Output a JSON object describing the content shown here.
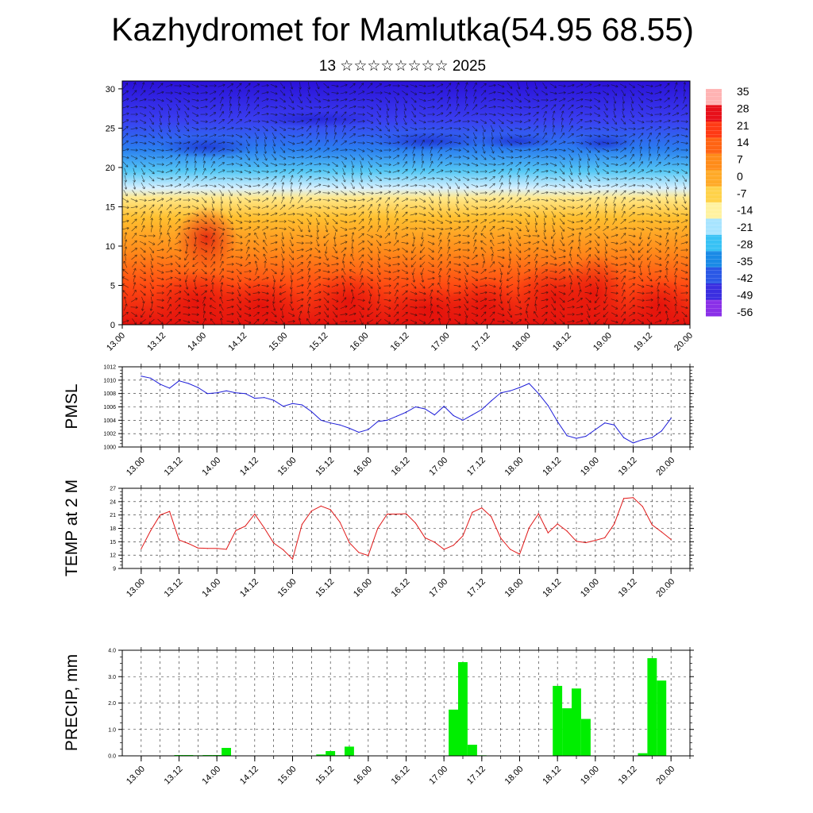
{
  "header": {
    "title": "Kazhydromet for Mamlutka(54.95 68.55)",
    "subtitle": "13 ☆☆☆☆☆☆☆☆ 2025"
  },
  "chart_data": [
    {
      "type": "heatmap",
      "title": "",
      "xlabel": "",
      "ylabel": "",
      "xticks": [
        "13.00",
        "13.12",
        "14.00",
        "14.12",
        "15.00",
        "15.12",
        "16.00",
        "16.12",
        "17.00",
        "17.12",
        "18.00",
        "18.12",
        "19.00",
        "19.12",
        "20.00"
      ],
      "ylim": [
        0,
        31
      ],
      "yticks": [
        0,
        5,
        10,
        15,
        20,
        25,
        30
      ],
      "colorbar": {
        "labels": [
          "35",
          "28",
          "21",
          "14",
          "7",
          "0",
          "-7",
          "-14",
          "-21",
          "-28",
          "-35",
          "-42",
          "-49",
          "-56"
        ],
        "colors": [
          "#ffb3b3",
          "#e8101a",
          "#ff3a14",
          "#ff6414",
          "#ff8c1a",
          "#ffaa28",
          "#ffd24a",
          "#fff2a0",
          "#a8e4ff",
          "#38c2f5",
          "#1a8ae6",
          "#2a58e6",
          "#3a2ee0",
          "#8a30e8"
        ]
      },
      "fields": "temperature (color), wind (arrows)"
    },
    {
      "type": "line",
      "ylabel": "PMSL",
      "ylim": [
        1000,
        1012
      ],
      "yticks": [
        1000,
        1002,
        1004,
        1006,
        1008,
        1010,
        1012
      ],
      "xticks": [
        "13.00",
        "13.12",
        "14.00",
        "14.12",
        "15.00",
        "15.12",
        "16.00",
        "16.12",
        "17.00",
        "17.12",
        "18.00",
        "18.12",
        "19.00",
        "19.12",
        "20.00"
      ],
      "color": "#1c1cd8",
      "x": [
        0,
        3,
        6,
        9,
        12,
        15,
        18,
        21,
        24,
        27,
        30,
        33,
        36,
        39,
        42,
        45,
        48,
        51,
        54,
        57,
        60,
        63,
        66,
        69,
        72,
        75,
        78,
        81,
        84,
        87,
        90,
        93,
        96,
        99,
        102,
        105,
        108,
        111,
        114,
        117,
        120,
        123,
        126,
        129,
        132,
        135,
        138,
        141,
        144,
        147,
        150,
        153,
        156,
        159,
        162,
        165,
        168
      ],
      "values": [
        1010.6,
        1010.3,
        1009.4,
        1008.8,
        1009.9,
        1009.5,
        1008.9,
        1008.0,
        1008.1,
        1008.4,
        1008.1,
        1008.0,
        1007.3,
        1007.4,
        1007.0,
        1006.1,
        1006.5,
        1006.3,
        1005.3,
        1004.0,
        1003.6,
        1003.3,
        1002.8,
        1002.2,
        1002.6,
        1003.8,
        1004.0,
        1004.6,
        1005.2,
        1006.0,
        1005.7,
        1004.8,
        1006.1,
        1004.7,
        1004.0,
        1004.8,
        1005.6,
        1006.9,
        1008.1,
        1008.4,
        1008.9,
        1009.5,
        1008.0,
        1006.2,
        1003.8,
        1001.7,
        1001.3,
        1001.6,
        1002.6,
        1003.6,
        1003.3,
        1001.4,
        1000.6,
        1001.1,
        1001.4,
        1002.4,
        1004.3
      ]
    },
    {
      "type": "line",
      "ylabel": "TEMP at 2 M",
      "ylim": [
        9,
        27
      ],
      "yticks": [
        9,
        12,
        15,
        18,
        21,
        24,
        27
      ],
      "xticks": [
        "13.00",
        "13.12",
        "14.00",
        "14.12",
        "15.00",
        "15.12",
        "16.00",
        "16.12",
        "17.00",
        "17.12",
        "18.00",
        "18.12",
        "19.00",
        "19.12",
        "20.00"
      ],
      "color": "#e01818",
      "x": [
        0,
        3,
        6,
        9,
        12,
        15,
        18,
        21,
        24,
        27,
        30,
        33,
        36,
        39,
        42,
        45,
        48,
        51,
        54,
        57,
        60,
        63,
        66,
        69,
        72,
        75,
        78,
        81,
        84,
        87,
        90,
        93,
        96,
        99,
        102,
        105,
        108,
        111,
        114,
        117,
        120,
        123,
        126,
        129,
        132,
        135,
        138,
        141,
        144,
        147,
        150,
        153,
        156,
        159,
        162,
        165,
        168
      ],
      "values": [
        13.4,
        17.5,
        21.0,
        21.8,
        15.4,
        14.6,
        13.6,
        13.5,
        13.5,
        13.3,
        17.5,
        18.5,
        21.2,
        18.1,
        14.7,
        13.2,
        11.1,
        18.9,
        21.9,
        23.0,
        22.2,
        19.4,
        14.8,
        12.6,
        11.9,
        18.0,
        21.2,
        21.2,
        21.3,
        19.2,
        15.9,
        14.9,
        13.3,
        14.2,
        16.3,
        21.6,
        22.6,
        20.6,
        15.8,
        13.3,
        12.2,
        18.1,
        21.3,
        17.0,
        19.0,
        17.4,
        15.1,
        14.8,
        15.3,
        15.9,
        19.0,
        24.7,
        24.9,
        22.9,
        18.8,
        17.2,
        15.5
      ]
    },
    {
      "type": "bar",
      "ylabel": "PRECIP, mm",
      "ylim": [
        0,
        4
      ],
      "yticks": [
        "0.0",
        "1.0",
        "2.0",
        "3.0",
        "4.0"
      ],
      "xticks": [
        "13.00",
        "13.12",
        "14.00",
        "14.12",
        "15.00",
        "15.12",
        "16.00",
        "16.12",
        "17.00",
        "17.12",
        "18.00",
        "18.12",
        "19.00",
        "19.12",
        "20.00"
      ],
      "color": "#00ee00",
      "x": [
        12,
        15,
        18,
        21,
        24,
        27,
        57,
        60,
        63,
        66,
        99,
        102,
        105,
        108,
        111,
        114,
        132,
        135,
        138,
        141,
        144,
        159,
        162,
        165
      ],
      "values": [
        0.03,
        0.03,
        0.02,
        0.03,
        0.03,
        0.3,
        0.05,
        0.18,
        0.02,
        0.35,
        1.75,
        3.55,
        0.42,
        0.02,
        0.01,
        0.01,
        2.65,
        1.8,
        2.55,
        1.4,
        0.01,
        0.1,
        3.7,
        2.85
      ]
    }
  ]
}
